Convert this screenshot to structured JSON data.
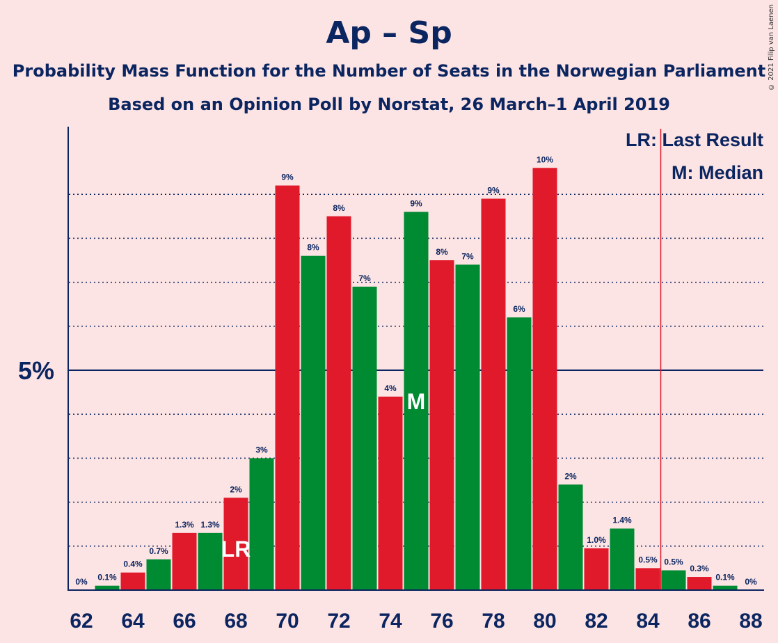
{
  "header": {
    "title": "Ap – Sp",
    "subtitle": "Probability Mass Function for the Number of Seats in the Norwegian Parliament",
    "subtitle2": "Based on an Opinion Poll by Norstat, 26 March–1 April 2019",
    "copyright": "© 2021 Filip van Laenen"
  },
  "legend": {
    "last_result": "LR: Last Result",
    "median": "M: Median"
  },
  "colors": {
    "background": "#fde4e4",
    "red": "#e0192b",
    "green": "#008a32",
    "navy": "#0b2560",
    "lr_line": "#e0192b"
  },
  "chart_data": {
    "type": "bar",
    "x": [
      62,
      63,
      64,
      65,
      66,
      67,
      68,
      69,
      70,
      71,
      72,
      73,
      74,
      75,
      76,
      77,
      78,
      79,
      80,
      81,
      82,
      83,
      84,
      85,
      86,
      87,
      88
    ],
    "values": [
      0,
      0.1,
      0.4,
      0.7,
      1.3,
      1.3,
      2.1,
      3.0,
      9.2,
      7.6,
      8.5,
      6.9,
      4.4,
      8.6,
      7.5,
      7.4,
      8.9,
      6.2,
      9.6,
      2.4,
      0.95,
      1.4,
      0.5,
      0.45,
      0.3,
      0.1,
      0
    ],
    "labels": [
      "0%",
      "0.1%",
      "0.4%",
      "0.7%",
      "1.3%",
      "1.3%",
      "2%",
      "3%",
      "9%",
      "8%",
      "8%",
      "7%",
      "4%",
      "9%",
      "8%",
      "7%",
      "9%",
      "6%",
      "10%",
      "2%",
      "1.0%",
      "1.4%",
      "0.5%",
      "0.5%",
      "0.3%",
      "0.1%",
      "0%"
    ],
    "x_ticks": [
      "62",
      "64",
      "66",
      "68",
      "70",
      "72",
      "74",
      "76",
      "78",
      "80",
      "82",
      "84",
      "86",
      "88"
    ],
    "y_tick_label": "5%",
    "y_tick_value": 5,
    "ylim": [
      0,
      10.5
    ],
    "grid": "dotted, every 1%",
    "last_result_seat": 68,
    "last_result_label": "LR",
    "median_seat": 75,
    "median_label": "M",
    "lr_line_position": 84.5,
    "legend_position": "top-right"
  }
}
